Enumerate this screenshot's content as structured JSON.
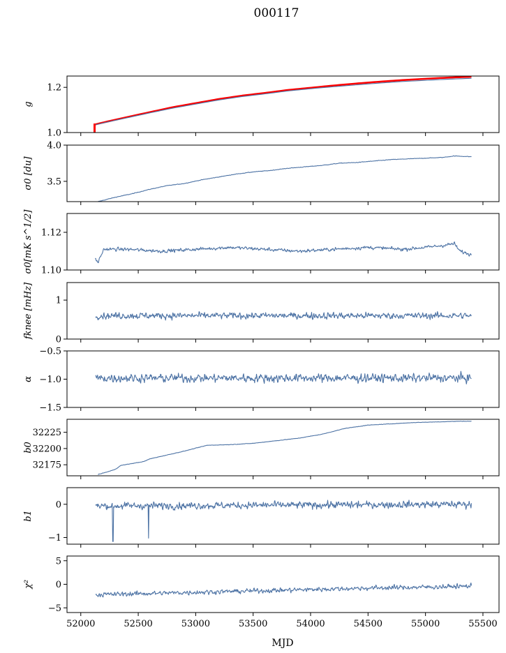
{
  "figure": {
    "title": "000117",
    "xlabel": "MJD"
  },
  "colors": {
    "series": "#4c72a4",
    "reference": "#ff0000",
    "axis": "#000000"
  },
  "chart_data": [
    {
      "type": "line",
      "ylabel": "g",
      "ylim": [
        1.0,
        1.25
      ],
      "yticks": [
        "1.0",
        "1.2"
      ],
      "ytick_values": [
        1.0,
        1.2
      ],
      "xlim": [
        51880,
        55640
      ],
      "series": [
        {
          "kind": "reference",
          "x": [
            52120,
            52125,
            52200,
            52400,
            52600,
            52800,
            53000,
            53200,
            53400,
            53600,
            53800,
            54000,
            54200,
            54400,
            54600,
            54800,
            55000,
            55200,
            55400
          ],
          "y": [
            1.035,
            1.036,
            1.045,
            1.068,
            1.09,
            1.112,
            1.13,
            1.148,
            1.163,
            1.175,
            1.188,
            1.198,
            1.208,
            1.217,
            1.225,
            1.232,
            1.238,
            1.243,
            1.247
          ]
        },
        {
          "kind": "data",
          "x": [
            52125,
            52200,
            52400,
            52600,
            52800,
            53000,
            53200,
            53400,
            53600,
            53800,
            54000,
            54200,
            54400,
            54600,
            54800,
            55000,
            55200,
            55400
          ],
          "y": [
            1.034,
            1.043,
            1.065,
            1.087,
            1.108,
            1.126,
            1.144,
            1.159,
            1.171,
            1.184,
            1.194,
            1.203,
            1.211,
            1.219,
            1.226,
            1.231,
            1.236,
            1.24
          ]
        }
      ],
      "marker": {
        "x": 52120,
        "y0": 1.0,
        "y1": 1.04
      }
    },
    {
      "type": "line",
      "ylabel": "σ0 [du]",
      "ylim": [
        3.22,
        4.0
      ],
      "yticks": [
        "3.5",
        "4.0"
      ],
      "ytick_values": [
        3.5,
        4.0
      ],
      "xlim": [
        51880,
        55640
      ],
      "series": [
        {
          "kind": "data",
          "x": [
            52150,
            52300,
            52450,
            52600,
            52750,
            52900,
            53050,
            53200,
            53350,
            53500,
            53650,
            53800,
            53950,
            54100,
            54250,
            54400,
            54550,
            54700,
            54850,
            55000,
            55150,
            55250,
            55400
          ],
          "y": [
            3.22,
            3.28,
            3.33,
            3.39,
            3.44,
            3.47,
            3.52,
            3.56,
            3.6,
            3.63,
            3.65,
            3.68,
            3.7,
            3.72,
            3.75,
            3.76,
            3.78,
            3.8,
            3.81,
            3.82,
            3.83,
            3.85,
            3.84
          ]
        }
      ],
      "noise": 0.005
    },
    {
      "type": "line",
      "ylabel": "σ0[mK s^1/2]",
      "ylim": [
        1.1,
        1.13
      ],
      "yticks": [
        "1.10",
        "1.12"
      ],
      "ytick_values": [
        1.1,
        1.12
      ],
      "xlim": [
        51880,
        55640
      ],
      "series": [
        {
          "kind": "data",
          "x": [
            52125,
            52150,
            52200,
            52400,
            52700,
            53000,
            53300,
            53600,
            53900,
            54200,
            54500,
            54800,
            55000,
            55150,
            55250,
            55300,
            55400
          ],
          "y": [
            1.106,
            1.104,
            1.111,
            1.111,
            1.11,
            1.111,
            1.112,
            1.111,
            1.11,
            1.111,
            1.112,
            1.111,
            1.112,
            1.113,
            1.114,
            1.11,
            1.108
          ]
        }
      ],
      "noise": 0.0012
    },
    {
      "type": "line",
      "ylabel": "fknee [mHz]",
      "ylim": [
        0.0,
        1.45
      ],
      "yticks": [
        "0",
        "1"
      ],
      "ytick_values": [
        0,
        1
      ],
      "xlim": [
        51880,
        55640
      ],
      "series": [
        {
          "kind": "data",
          "x": [
            52130,
            55400
          ],
          "y": [
            0.6,
            0.6
          ]
        }
      ],
      "noise": 0.11
    },
    {
      "type": "line",
      "ylabel": "α",
      "ylim": [
        -1.5,
        -0.5
      ],
      "yticks": [
        "−1.5",
        "−1.0",
        "−0.5"
      ],
      "ytick_values": [
        -1.5,
        -1.0,
        -0.5
      ],
      "xlim": [
        51880,
        55640
      ],
      "series": [
        {
          "kind": "data",
          "x": [
            52130,
            55400
          ],
          "y": [
            -0.98,
            -0.98
          ]
        }
      ],
      "noise": 0.1
    },
    {
      "type": "line",
      "ylabel": "b0",
      "ylim": [
        32158,
        32245
      ],
      "yticks": [
        "32175",
        "32200",
        "32225"
      ],
      "ytick_values": [
        32175,
        32200,
        32225
      ],
      "xlim": [
        51880,
        55640
      ],
      "series": [
        {
          "kind": "data",
          "x": [
            52150,
            52250,
            52300,
            52350,
            52450,
            52550,
            52600,
            52700,
            52900,
            53100,
            53300,
            53500,
            53700,
            53900,
            54100,
            54300,
            54500,
            54700,
            54900,
            55100,
            55300,
            55400
          ],
          "y": [
            32160,
            32165,
            32168,
            32174,
            32177,
            32180,
            32184,
            32188,
            32196,
            32205,
            32206,
            32208,
            32212,
            32216,
            32222,
            32231,
            32236,
            32238,
            32240,
            32241,
            32242,
            32242
          ]
        }
      ],
      "noise": 0.4
    },
    {
      "type": "line",
      "ylabel": "b1",
      "ylim": [
        -1.2,
        0.5
      ],
      "yticks": [
        "−1",
        "0"
      ],
      "ytick_values": [
        -1,
        0
      ],
      "xlim": [
        51880,
        55640
      ],
      "series": [
        {
          "kind": "data",
          "x": [
            52130,
            55400
          ],
          "y": [
            -0.05,
            0.0
          ]
        }
      ],
      "noise": 0.14,
      "spikes": [
        {
          "x": 52280,
          "y": -1.12
        },
        {
          "x": 52590,
          "y": -1.02
        }
      ]
    },
    {
      "type": "line",
      "ylabel": "χ²",
      "ylim": [
        -6,
        6
      ],
      "yticks": [
        "−5",
        "0",
        "5"
      ],
      "ytick_values": [
        -5,
        0,
        5
      ],
      "xlim": [
        51880,
        55640
      ],
      "xticks": [
        "52000",
        "52500",
        "53000",
        "53500",
        "54000",
        "54500",
        "55000",
        "55500"
      ],
      "xtick_values": [
        52000,
        52500,
        53000,
        53500,
        54000,
        54500,
        55000,
        55500
      ],
      "series": [
        {
          "kind": "data",
          "x": [
            52130,
            52500,
            53000,
            53500,
            54000,
            54500,
            55000,
            55400
          ],
          "y": [
            -2.2,
            -2.0,
            -1.7,
            -1.4,
            -1.1,
            -0.8,
            -0.6,
            -0.4
          ]
        }
      ],
      "noise": 0.65
    }
  ]
}
